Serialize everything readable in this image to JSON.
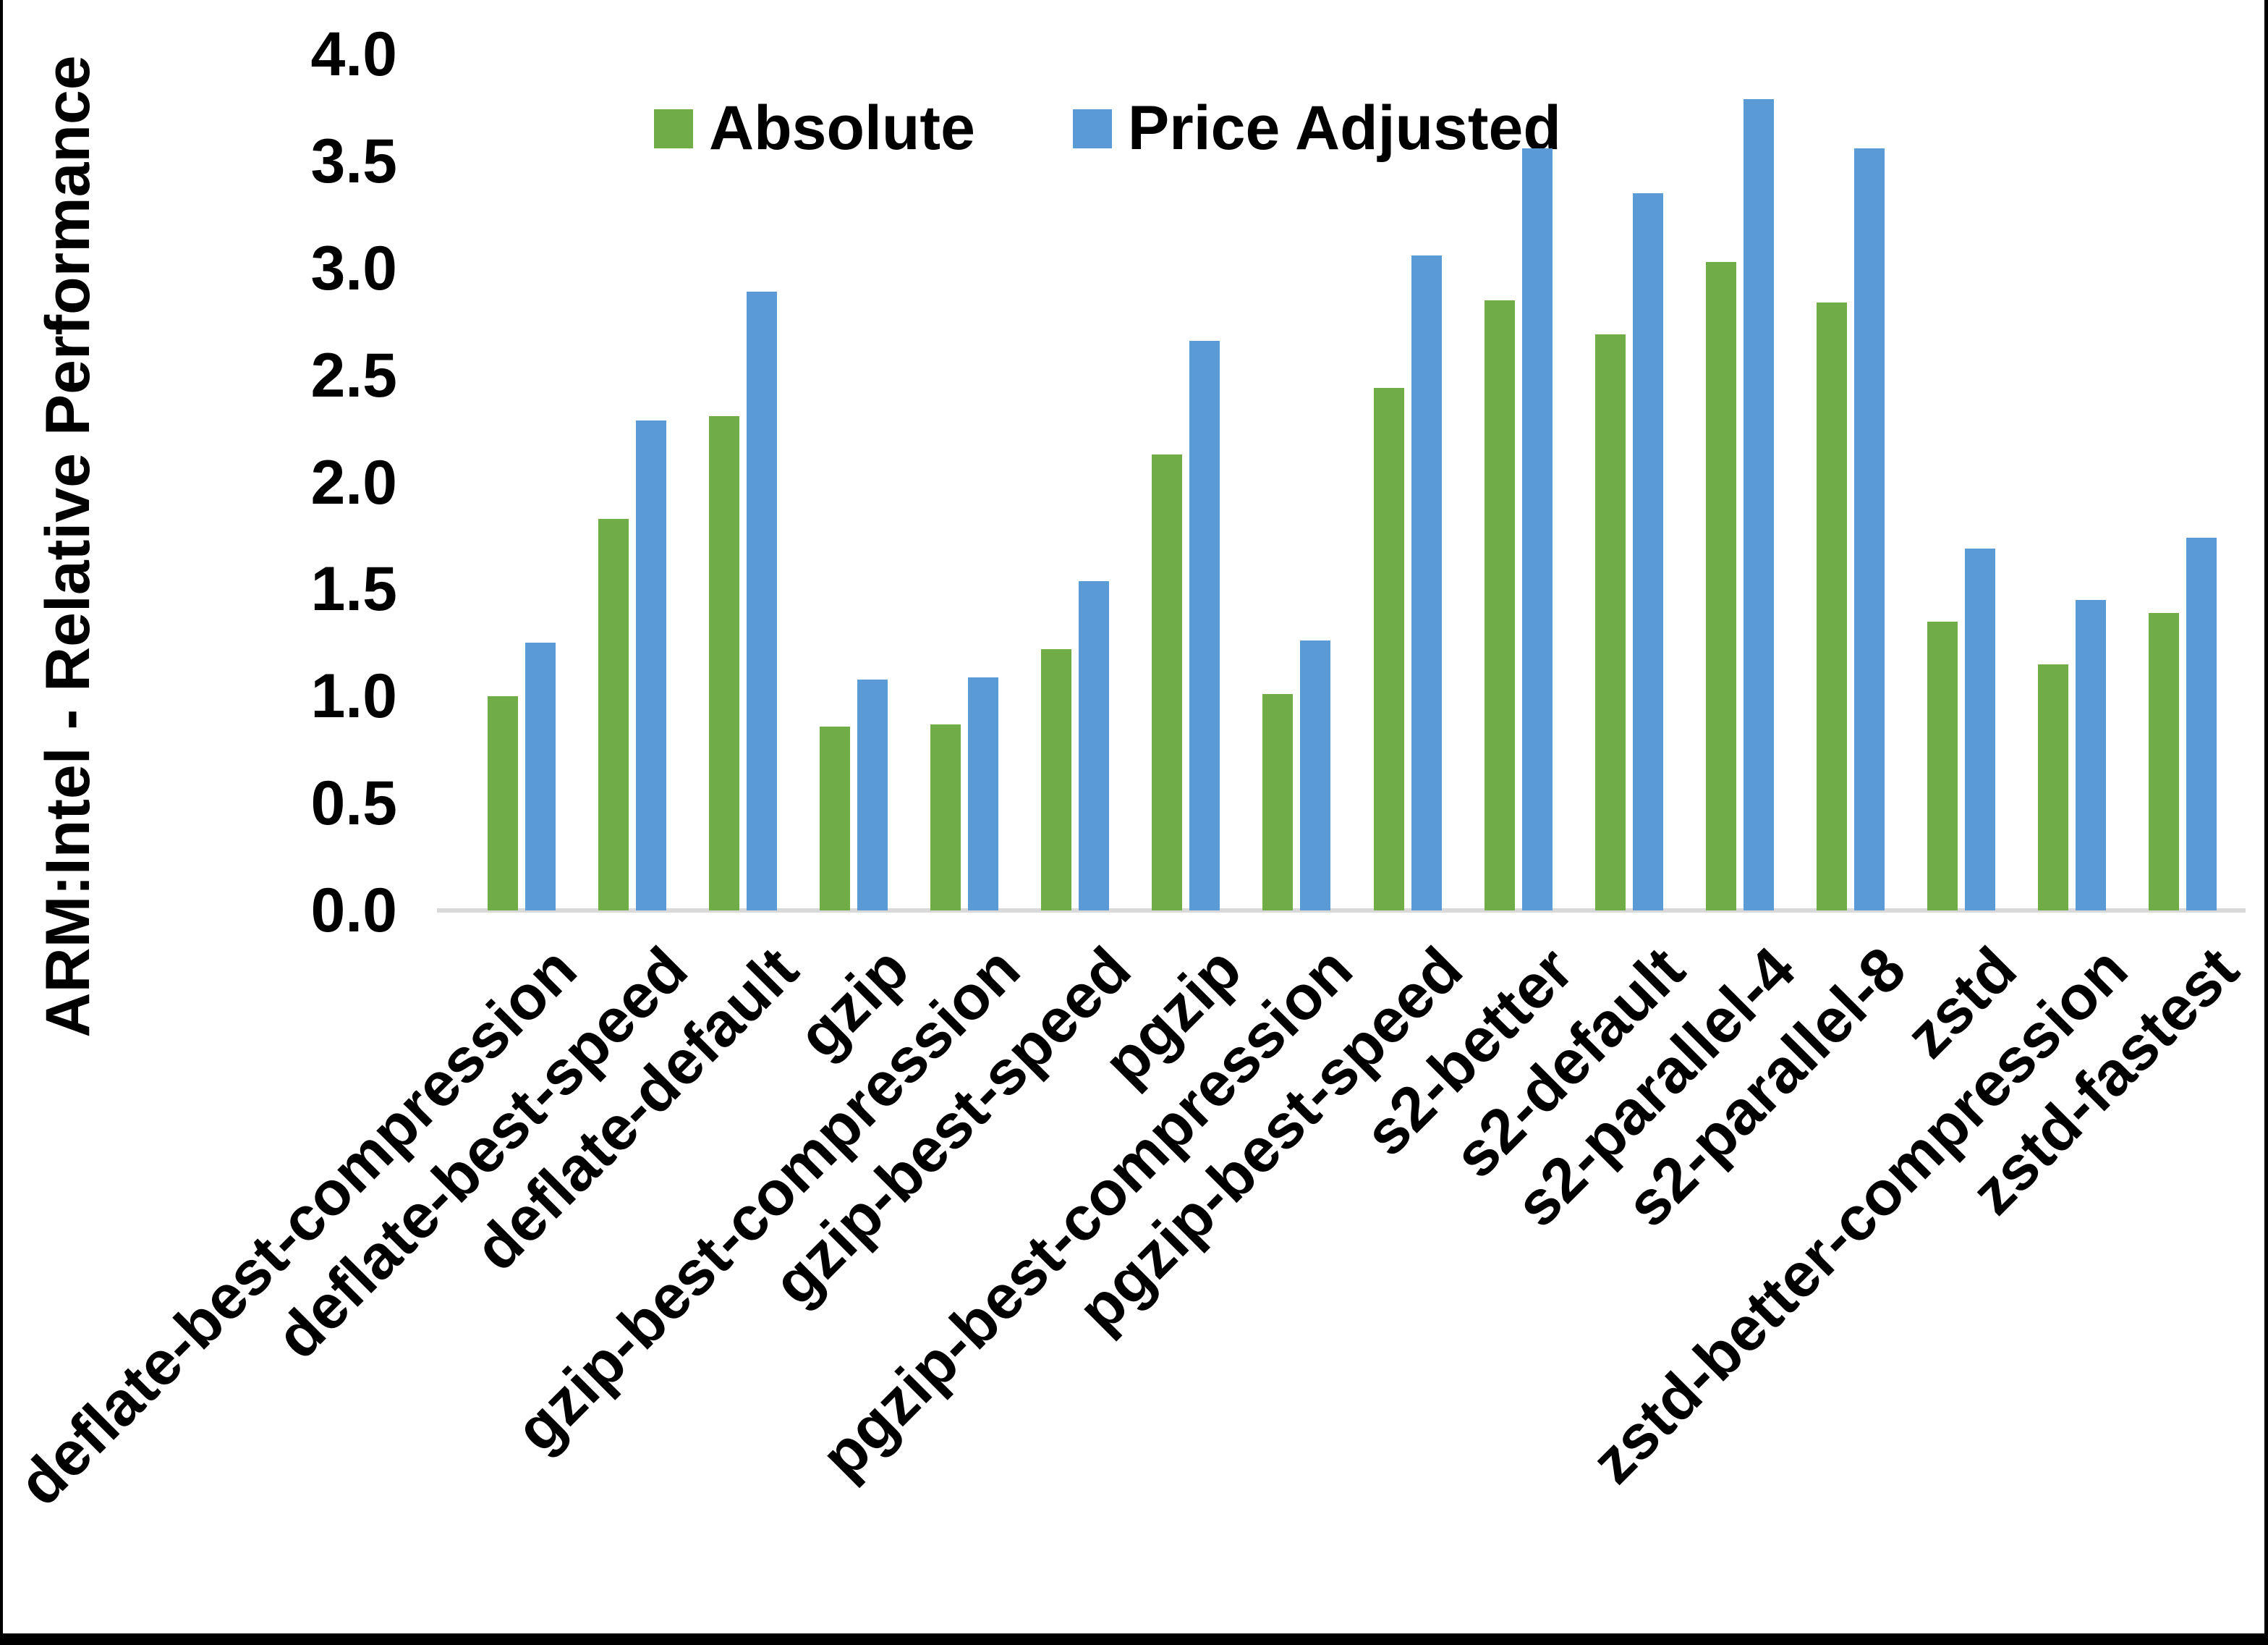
{
  "frame": {
    "background": "#ffffff",
    "border_color": "#000000"
  },
  "chart_data": {
    "type": "bar",
    "title": "",
    "xlabel": "",
    "ylabel": "ARM:Intel - Relative Performance",
    "ylim": [
      0,
      4.0
    ],
    "ytick_step": 0.5,
    "yticks": [
      "0.0",
      "0.5",
      "1.0",
      "1.5",
      "2.0",
      "2.5",
      "3.0",
      "3.5",
      "4.0"
    ],
    "grid": false,
    "legend_position": "top-center",
    "axis_line_color": "#d9d9d9",
    "text_color": "#000000",
    "categories": [
      "deflate-best-compression",
      "deflate-best-speed",
      "deflate-default",
      "gzip",
      "gzip-best-compression",
      "gzip-best-speed",
      "pgzip",
      "pgzip-best-compression",
      "pgzip-best-speed",
      "s2-better",
      "s2-default",
      "s2-parallel-4",
      "s2-parallel-8",
      "zstd",
      "zstd-better-compression",
      "zstd-fastest"
    ],
    "series": [
      {
        "name": "Absolute",
        "color": "#70AD47",
        "values": [
          1.0,
          1.83,
          2.31,
          0.86,
          0.87,
          1.22,
          2.13,
          1.01,
          2.44,
          2.85,
          2.69,
          3.03,
          2.84,
          1.35,
          1.15,
          1.39
        ]
      },
      {
        "name": "Price Adjusted",
        "color": "#5B9BD5",
        "values": [
          1.25,
          2.29,
          2.89,
          1.08,
          1.09,
          1.54,
          2.66,
          1.26,
          3.06,
          3.56,
          3.35,
          3.79,
          3.56,
          1.69,
          1.45,
          1.74
        ]
      }
    ]
  }
}
